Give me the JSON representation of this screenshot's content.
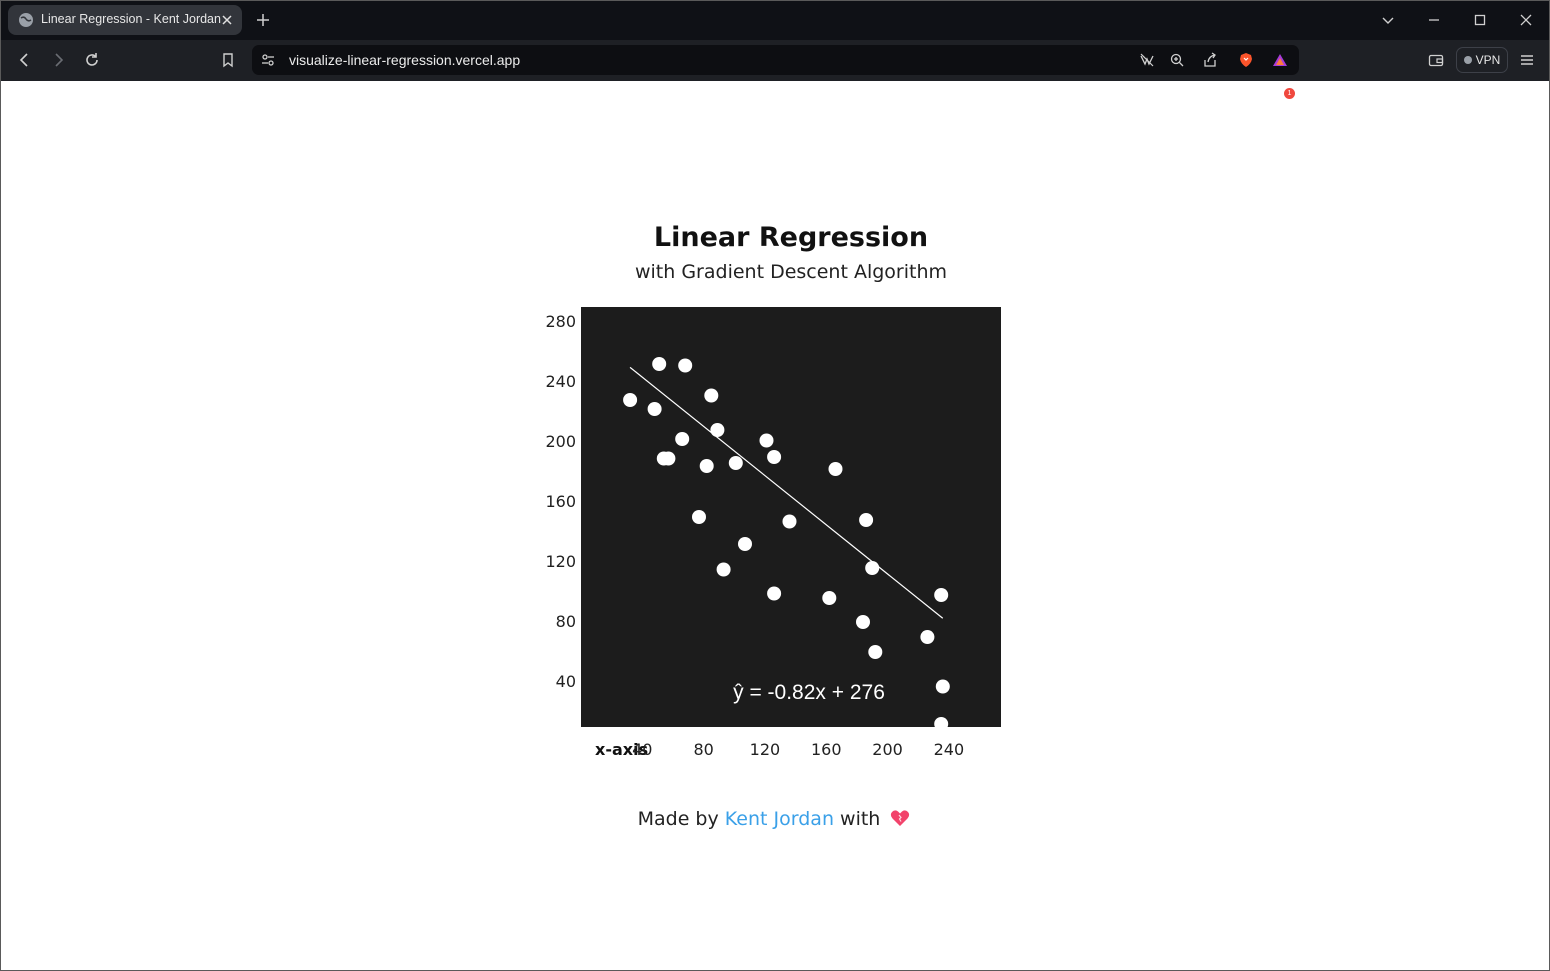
{
  "browser": {
    "tab_title": "Linear Regression - Kent Jordan",
    "url": "visualize-linear-regression.vercel.app",
    "vpn_label": "VPN",
    "notification_count": "1"
  },
  "page": {
    "title": "Linear Regression",
    "subtitle": "with Gradient Descent Algorithm",
    "footer_prefix": "Made by",
    "footer_link": "Kent Jordan",
    "footer_suffix": "with"
  },
  "chart_data": {
    "type": "scatter",
    "xlabel": "x-axis",
    "ylabel": "",
    "x_ticks": [
      40,
      80,
      120,
      160,
      200,
      240
    ],
    "y_ticks": [
      40,
      80,
      120,
      160,
      200,
      240,
      280
    ],
    "xlim": [
      0,
      274
    ],
    "ylim": [
      10,
      290
    ],
    "grid": false,
    "background": "#1c1c1c",
    "point_color": "#ffffff",
    "line_color": "#ffffff",
    "equation_label": "ŷ = -0.82x + 276",
    "regression_line": {
      "slope": -0.82,
      "intercept": 276,
      "x_range": [
        32,
        236
      ]
    },
    "points": [
      {
        "x": 32,
        "y": 228
      },
      {
        "x": 48,
        "y": 222
      },
      {
        "x": 51,
        "y": 252
      },
      {
        "x": 68,
        "y": 251
      },
      {
        "x": 85,
        "y": 231
      },
      {
        "x": 54,
        "y": 189
      },
      {
        "x": 57,
        "y": 189
      },
      {
        "x": 66,
        "y": 202
      },
      {
        "x": 89,
        "y": 208
      },
      {
        "x": 82,
        "y": 184
      },
      {
        "x": 101,
        "y": 186
      },
      {
        "x": 121,
        "y": 201
      },
      {
        "x": 126,
        "y": 190
      },
      {
        "x": 166,
        "y": 182
      },
      {
        "x": 77,
        "y": 150
      },
      {
        "x": 107,
        "y": 132
      },
      {
        "x": 93,
        "y": 115
      },
      {
        "x": 136,
        "y": 147
      },
      {
        "x": 186,
        "y": 148
      },
      {
        "x": 190,
        "y": 116
      },
      {
        "x": 126,
        "y": 99
      },
      {
        "x": 162,
        "y": 96
      },
      {
        "x": 184,
        "y": 80
      },
      {
        "x": 192,
        "y": 60
      },
      {
        "x": 226,
        "y": 70
      },
      {
        "x": 235,
        "y": 98
      },
      {
        "x": 236,
        "y": 37
      },
      {
        "x": 235,
        "y": 12
      }
    ]
  }
}
